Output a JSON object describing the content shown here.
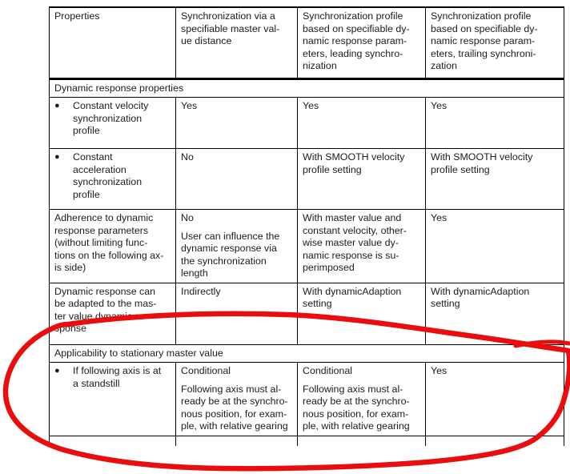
{
  "table": {
    "columns": [
      {
        "label": "Properties"
      },
      {
        "label": "Synchronization via a\nspecifiable master val-\nue distance"
      },
      {
        "label": "Synchronization profile\nbased on specifiable dy-\nnamic response param-\neters, leading synchro-\nnization"
      },
      {
        "label": "Synchronization profile\nbased on specifiable dy-\nnamic response param-\neters, trailing synchroni-\nzation"
      }
    ],
    "sections": [
      {
        "title": "Dynamic response properties",
        "rows": [
          {
            "property": {
              "bullet": true,
              "text": "Constant velocity\nsynchronization\nprofile"
            },
            "cells": [
              [
                "Yes"
              ],
              [
                "Yes"
              ],
              [
                "Yes"
              ]
            ]
          },
          {
            "property": {
              "bullet": true,
              "text": "Constant\nacceleration\nsynchronization\nprofile"
            },
            "cells": [
              [
                "No"
              ],
              [
                "With SMOOTH velocity\nprofile setting"
              ],
              [
                "With SMOOTH velocity\nprofile setting"
              ]
            ]
          },
          {
            "property": {
              "bullet": false,
              "text": "Adherence to dynamic\nresponse parameters\n(without limiting func-\ntions on the following ax-\nis side)"
            },
            "cells": [
              [
                "No",
                "User can influence the\ndynamic response via\nthe synchronization\nlength"
              ],
              [
                "With master value and\nconstant velocity, other-\nwise master value dy-\nnamic response is su-\nperimposed"
              ],
              [
                "Yes"
              ]
            ]
          },
          {
            "property": {
              "bullet": false,
              "text": "Dynamic response can\nbe adapted to the mas-\nter value dynamic re-\nsponse"
            },
            "cells": [
              [
                "Indirectly"
              ],
              [
                "With dynamicAdaption\nsetting"
              ],
              [
                "With dynamicAdaption\nsetting"
              ]
            ]
          }
        ]
      },
      {
        "title": "Applicability to stationary master value",
        "rows": [
          {
            "property": {
              "bullet": true,
              "text": "If following axis is at\na standstill"
            },
            "cells": [
              [
                "Conditional",
                "Following axis must al-\nready be at the synchro-\nnous position, for exam-\nple, with relative gearing"
              ],
              [
                "Conditional",
                "Following axis must al-\nready be at the synchro-\nnous position, for exam-\nple, with relative gearing"
              ],
              [
                "Yes"
              ]
            ]
          }
        ]
      }
    ]
  },
  "annotation": {
    "shape": "hand-drawn ellipse",
    "color": "#e90d0d",
    "target": "Applicability to stationary master value section"
  }
}
